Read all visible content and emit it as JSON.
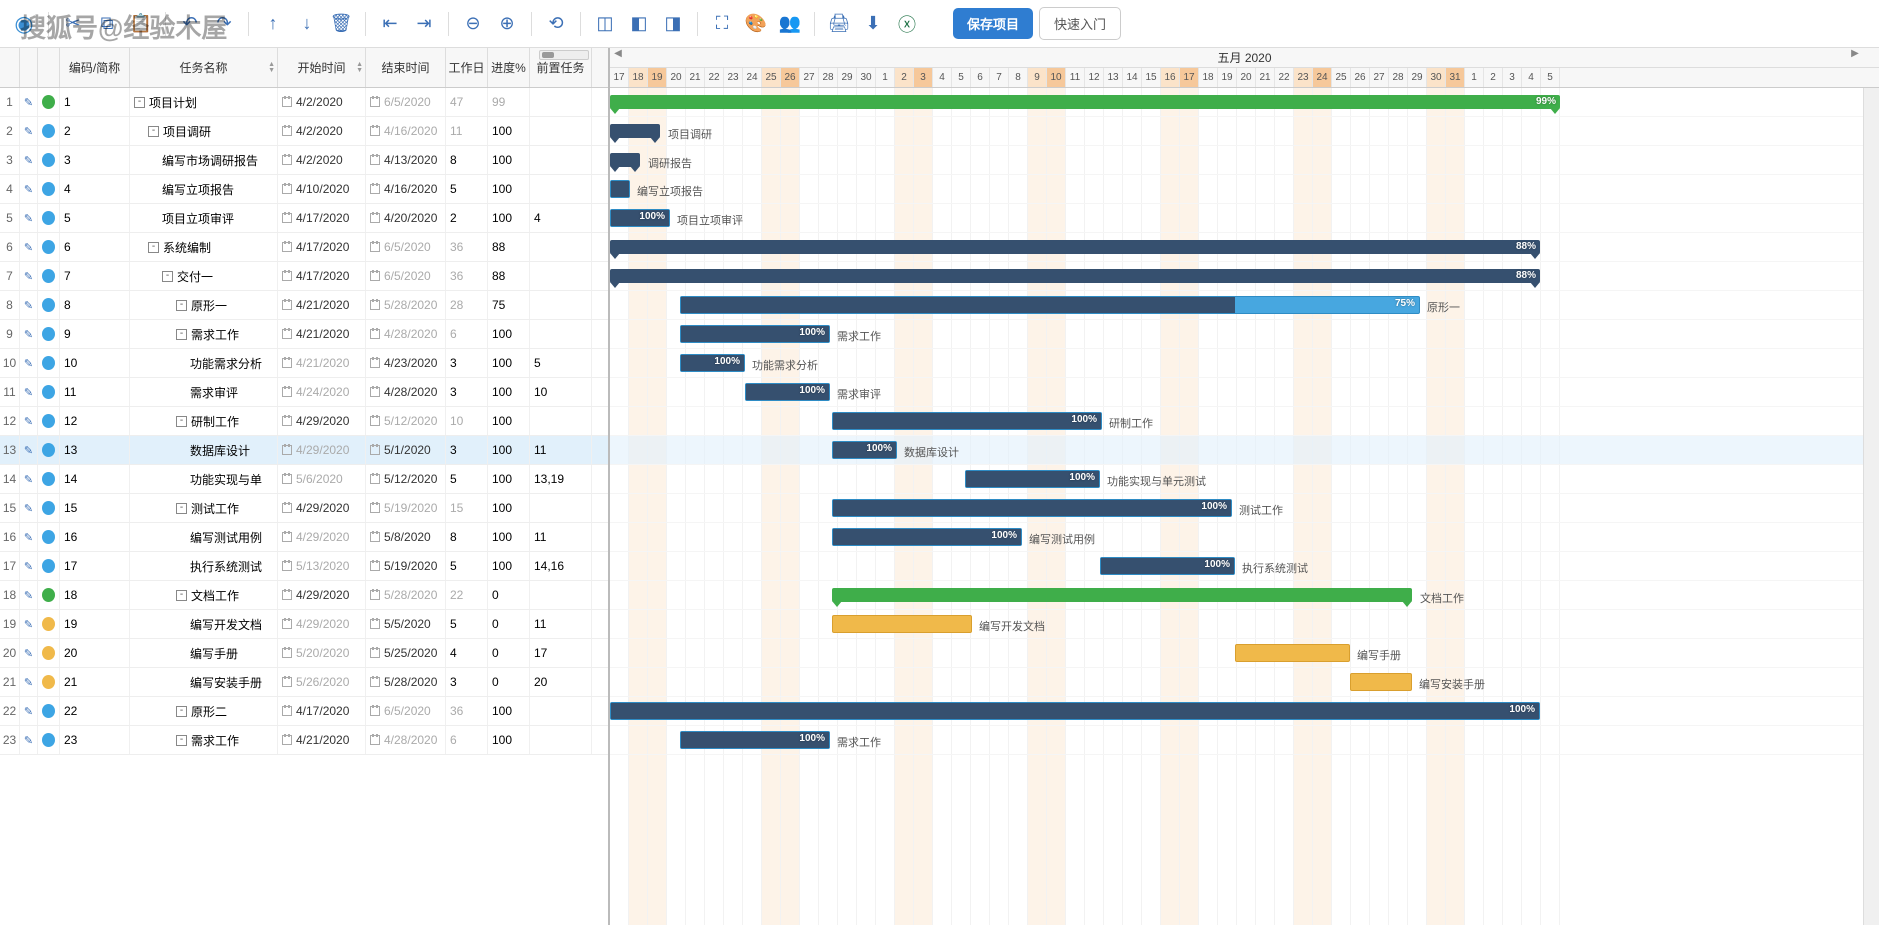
{
  "watermark": "搜狐号@经验木屋",
  "toolbar": {
    "save": "保存项目",
    "quickstart": "快速入门",
    "icons": [
      "logo",
      "cut",
      "copy",
      "paste",
      "undo",
      "redo",
      "up",
      "down",
      "delete",
      "outdent",
      "indent",
      "zoom-out",
      "zoom-in",
      "goto",
      "view1",
      "view2",
      "view3",
      "fullscreen",
      "theme",
      "users",
      "print",
      "download",
      "excel"
    ]
  },
  "columns": {
    "code": "编码/简称",
    "name": "任务名称",
    "start": "开始时间",
    "end": "结束时间",
    "workdays": "工作日",
    "progress": "进度%",
    "pred": "前置任务"
  },
  "month": "五月 2020",
  "day_start": 17,
  "days": [
    17,
    18,
    19,
    20,
    21,
    22,
    23,
    24,
    25,
    26,
    27,
    28,
    29,
    30,
    1,
    2,
    3,
    4,
    5,
    6,
    7,
    8,
    9,
    10,
    11,
    12,
    13,
    14,
    15,
    16,
    17,
    18,
    19,
    20,
    21,
    22,
    23,
    24,
    25,
    26,
    27,
    28,
    29,
    30,
    31,
    1,
    2,
    3,
    4,
    5
  ],
  "weekend_idx": [
    1,
    2,
    8,
    9,
    15,
    16,
    22,
    23,
    29,
    30,
    36,
    37,
    43,
    44
  ],
  "highlight_idx": [
    2,
    9,
    16,
    23,
    30,
    37,
    44
  ],
  "colors": {
    "blue": "#3da5e4",
    "green": "#3fae4a",
    "yellow": "#f0b94a",
    "summary": "#36506f",
    "task": "#47a7e0",
    "sel": "#e1f0fb"
  },
  "selected": 13,
  "tasks": [
    {
      "n": 1,
      "code": "1",
      "name": "项目计划",
      "indent": 0,
      "exp": "-",
      "dot": "green",
      "start": "4/2/2020",
      "end": "6/5/2020",
      "end_dim": true,
      "wd": "47",
      "wd_dim": true,
      "prog": "99",
      "prog_dim": true,
      "type": "green",
      "bx": 0,
      "bw": 950,
      "pct": "99%",
      "pct_right": true
    },
    {
      "n": 2,
      "code": "2",
      "name": "项目调研",
      "indent": 1,
      "exp": "-",
      "dot": "blue",
      "start": "4/2/2020",
      "end": "4/16/2020",
      "end_dim": true,
      "wd": "11",
      "wd_dim": true,
      "prog": "100",
      "type": "summary",
      "bx": 0,
      "bw": 50,
      "label": "项目调研"
    },
    {
      "n": 3,
      "code": "3",
      "name": "编写市场调研报告",
      "indent": 2,
      "dot": "blue",
      "start": "4/2/2020",
      "end": "4/13/2020",
      "wd": "8",
      "prog": "100",
      "type": "summary",
      "bx": 0,
      "bw": 30,
      "label": "调研报告"
    },
    {
      "n": 4,
      "code": "4",
      "name": "编写立项报告",
      "indent": 2,
      "dot": "blue",
      "start": "4/10/2020",
      "end": "4/16/2020",
      "wd": "5",
      "prog": "100",
      "type": "task",
      "bx": 0,
      "bw": 20,
      "fill": 100,
      "label": "编写立项报告"
    },
    {
      "n": 5,
      "code": "5",
      "name": "项目立项审评",
      "indent": 2,
      "dot": "blue",
      "start": "4/17/2020",
      "end": "4/20/2020",
      "wd": "2",
      "prog": "100",
      "pred": "4",
      "type": "task",
      "bx": 0,
      "bw": 60,
      "fill": 100,
      "pct": "100%",
      "label": "项目立项审评"
    },
    {
      "n": 6,
      "code": "6",
      "name": "系统编制",
      "indent": 1,
      "exp": "-",
      "dot": "blue",
      "start": "4/17/2020",
      "end": "6/5/2020",
      "end_dim": true,
      "wd": "36",
      "wd_dim": true,
      "prog": "88",
      "type": "summary",
      "bx": 0,
      "bw": 930,
      "pct": "88%"
    },
    {
      "n": 7,
      "code": "7",
      "name": "交付一",
      "indent": 2,
      "exp": "-",
      "dot": "blue",
      "start": "4/17/2020",
      "end": "6/5/2020",
      "end_dim": true,
      "wd": "36",
      "wd_dim": true,
      "prog": "88",
      "type": "summary",
      "bx": 0,
      "bw": 930,
      "pct": "88%"
    },
    {
      "n": 8,
      "code": "8",
      "name": "原形一",
      "indent": 3,
      "exp": "-",
      "dot": "blue",
      "start": "4/21/2020",
      "end": "5/28/2020",
      "end_dim": true,
      "wd": "28",
      "wd_dim": true,
      "prog": "75",
      "type": "task",
      "bx": 70,
      "bw": 740,
      "fill": 75,
      "pct": "75%",
      "label": "原形一"
    },
    {
      "n": 9,
      "code": "9",
      "name": "需求工作",
      "indent": 3,
      "exp": "-",
      "dot": "blue",
      "start": "4/21/2020",
      "end": "4/28/2020",
      "end_dim": true,
      "wd": "6",
      "wd_dim": true,
      "prog": "100",
      "type": "task",
      "bx": 70,
      "bw": 150,
      "fill": 100,
      "pct": "100%",
      "label": "需求工作"
    },
    {
      "n": 10,
      "code": "10",
      "name": "功能需求分析",
      "indent": 4,
      "dot": "blue",
      "start": "4/21/2020",
      "start_dim": true,
      "end": "4/23/2020",
      "wd": "3",
      "prog": "100",
      "pred": "5",
      "type": "task",
      "bx": 70,
      "bw": 65,
      "fill": 100,
      "pct": "100%",
      "label": "功能需求分析"
    },
    {
      "n": 11,
      "code": "11",
      "name": "需求审评",
      "indent": 4,
      "dot": "blue",
      "start": "4/24/2020",
      "start_dim": true,
      "end": "4/28/2020",
      "wd": "3",
      "prog": "100",
      "pred": "10",
      "type": "task",
      "bx": 135,
      "bw": 85,
      "fill": 100,
      "pct": "100%",
      "label": "需求审评"
    },
    {
      "n": 12,
      "code": "12",
      "name": "研制工作",
      "indent": 3,
      "exp": "-",
      "dot": "blue",
      "start": "4/29/2020",
      "end": "5/12/2020",
      "end_dim": true,
      "wd": "10",
      "wd_dim": true,
      "prog": "100",
      "type": "task",
      "bx": 222,
      "bw": 270,
      "fill": 100,
      "pct": "100%",
      "label": "研制工作"
    },
    {
      "n": 13,
      "code": "13",
      "name": "数据库设计",
      "indent": 4,
      "dot": "blue",
      "start": "4/29/2020",
      "start_dim": true,
      "end": "5/1/2020",
      "wd": "3",
      "prog": "100",
      "pred": "11",
      "type": "task",
      "bx": 222,
      "bw": 65,
      "fill": 100,
      "pct": "100%",
      "label": "数据库设计"
    },
    {
      "n": 14,
      "code": "14",
      "name": "功能实现与单",
      "indent": 4,
      "dot": "blue",
      "start": "5/6/2020",
      "start_dim": true,
      "end": "5/12/2020",
      "wd": "5",
      "prog": "100",
      "pred": "13,19",
      "type": "task",
      "bx": 355,
      "bw": 135,
      "fill": 100,
      "pct": "100%",
      "label": "功能实现与单元测试"
    },
    {
      "n": 15,
      "code": "15",
      "name": "测试工作",
      "indent": 3,
      "exp": "-",
      "dot": "blue",
      "start": "4/29/2020",
      "end": "5/19/2020",
      "end_dim": true,
      "wd": "15",
      "wd_dim": true,
      "prog": "100",
      "type": "task",
      "bx": 222,
      "bw": 400,
      "fill": 100,
      "pct": "100%",
      "label": "测试工作"
    },
    {
      "n": 16,
      "code": "16",
      "name": "编写测试用例",
      "indent": 4,
      "dot": "blue",
      "start": "4/29/2020",
      "start_dim": true,
      "end": "5/8/2020",
      "wd": "8",
      "prog": "100",
      "pred": "11",
      "type": "task",
      "bx": 222,
      "bw": 190,
      "fill": 100,
      "pct": "100%",
      "label": "编写测试用例"
    },
    {
      "n": 17,
      "code": "17",
      "name": "执行系统测试",
      "indent": 4,
      "dot": "blue",
      "start": "5/13/2020",
      "start_dim": true,
      "end": "5/19/2020",
      "wd": "5",
      "prog": "100",
      "pred": "14,16",
      "type": "task",
      "bx": 490,
      "bw": 135,
      "fill": 100,
      "pct": "100%",
      "label": "执行系统测试"
    },
    {
      "n": 18,
      "code": "18",
      "name": "文档工作",
      "indent": 3,
      "exp": "-",
      "dot": "green",
      "start": "4/29/2020",
      "end": "5/28/2020",
      "end_dim": true,
      "wd": "22",
      "wd_dim": true,
      "prog": "0",
      "type": "green",
      "bx": 222,
      "bw": 580,
      "label": "文档工作"
    },
    {
      "n": 19,
      "code": "19",
      "name": "编写开发文档",
      "indent": 4,
      "dot": "yellow",
      "start": "4/29/2020",
      "start_dim": true,
      "end": "5/5/2020",
      "wd": "5",
      "prog": "0",
      "pred": "11",
      "type": "yellow",
      "bx": 222,
      "bw": 140,
      "label": "编写开发文档"
    },
    {
      "n": 20,
      "code": "20",
      "name": "编写手册",
      "indent": 4,
      "dot": "yellow",
      "start": "5/20/2020",
      "start_dim": true,
      "end": "5/25/2020",
      "wd": "4",
      "prog": "0",
      "pred": "17",
      "type": "yellow",
      "bx": 625,
      "bw": 115,
      "label": "编写手册"
    },
    {
      "n": 21,
      "code": "21",
      "name": "编写安装手册",
      "indent": 4,
      "dot": "yellow",
      "start": "5/26/2020",
      "start_dim": true,
      "end": "5/28/2020",
      "wd": "3",
      "prog": "0",
      "pred": "20",
      "type": "yellow",
      "bx": 740,
      "bw": 62,
      "label": "编写安装手册"
    },
    {
      "n": 22,
      "code": "22",
      "name": "原形二",
      "indent": 3,
      "exp": "-",
      "dot": "blue",
      "start": "4/17/2020",
      "end": "6/5/2020",
      "end_dim": true,
      "wd": "36",
      "wd_dim": true,
      "prog": "100",
      "type": "task",
      "bx": 0,
      "bw": 930,
      "fill": 100,
      "pct": "100%",
      "pct_right": true
    },
    {
      "n": 23,
      "code": "23",
      "name": "需求工作",
      "indent": 3,
      "exp": "-",
      "dot": "blue",
      "start": "4/21/2020",
      "end": "4/28/2020",
      "end_dim": true,
      "wd": "6",
      "wd_dim": true,
      "prog": "100",
      "type": "task",
      "bx": 70,
      "bw": 150,
      "fill": 100,
      "pct": "100%",
      "label": "需求工作"
    }
  ]
}
